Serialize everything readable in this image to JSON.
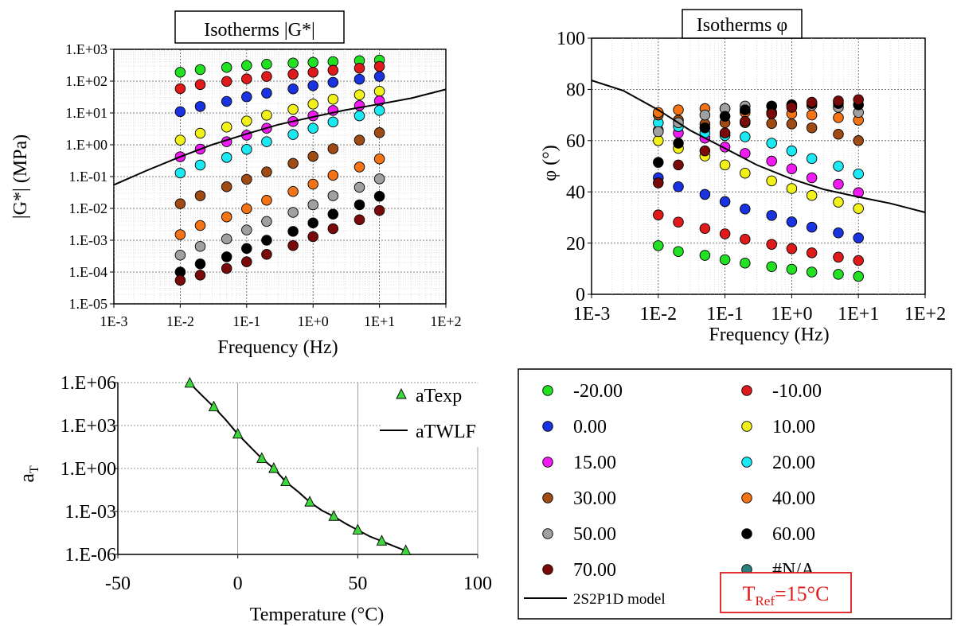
{
  "chart_data": [
    {
      "type": "scatter",
      "title": "Isotherms |G*|",
      "xlabel": "Frequency (Hz)",
      "ylabel": "|G*| (MPa)",
      "x_scale": "log",
      "y_scale": "log",
      "xlim": [
        0.001,
        100
      ],
      "ylim": [
        1e-05,
        1000
      ],
      "x_ticks": [
        0.001,
        0.01,
        0.1,
        1,
        10,
        100
      ],
      "x_tick_labels": [
        "1E-3",
        "1E-2",
        "1E-1",
        "1E+0",
        "1E+1",
        "1E+2"
      ],
      "y_ticks": [
        1e-05,
        0.0001,
        0.001,
        0.01,
        0.1,
        1,
        10,
        100,
        1000
      ],
      "y_tick_labels": [
        "1.E-05",
        "1.E-04",
        "1.E-03",
        "1.E-02",
        "1.E-01",
        "1.E+00",
        "1.E+01",
        "1.E+02",
        "1.E+03"
      ],
      "grid": true,
      "frequencies": [
        0.01,
        0.02,
        0.05,
        0.1,
        0.2,
        0.5,
        1,
        2,
        5,
        10
      ],
      "series": [
        {
          "name": "-20.00",
          "color": "#22e022",
          "values": [
            190,
            230,
            270,
            310,
            340,
            370,
            390,
            410,
            440,
            460
          ]
        },
        {
          "name": "-10.00",
          "color": "#e01a1a",
          "values": [
            58,
            78,
            98,
            118,
            140,
            165,
            190,
            220,
            255,
            290
          ]
        },
        {
          "name": "0.00",
          "color": "#1a33e0",
          "values": [
            11,
            16,
            23,
            32,
            42,
            57,
            72,
            92,
            115,
            140
          ]
        },
        {
          "name": "10.00",
          "color": "#f2f21a",
          "values": [
            1.4,
            2.3,
            3.6,
            5.6,
            8.5,
            13,
            19,
            27,
            37,
            48
          ]
        },
        {
          "name": "15.00",
          "color": "#f21af2",
          "values": [
            0.42,
            0.73,
            1.25,
            2.0,
            3.3,
            5.4,
            8.1,
            12,
            17,
            24
          ]
        },
        {
          "name": "20.00",
          "color": "#1ae8f2",
          "values": [
            0.13,
            0.23,
            0.4,
            0.72,
            1.25,
            2.1,
            3.3,
            5.2,
            8.1,
            12
          ]
        },
        {
          "name": "30.00",
          "color": "#a04a14",
          "values": [
            0.014,
            0.025,
            0.048,
            0.082,
            0.14,
            0.26,
            0.43,
            0.75,
            1.4,
            2.4
          ]
        },
        {
          "name": "40.00",
          "color": "#f47314",
          "values": [
            0.0015,
            0.0029,
            0.0054,
            0.0098,
            0.018,
            0.034,
            0.058,
            0.11,
            0.2,
            0.36
          ]
        },
        {
          "name": "50.00",
          "color": "#a0a0a0",
          "values": [
            0.00034,
            0.00064,
            0.0011,
            0.0021,
            0.0039,
            0.0075,
            0.013,
            0.025,
            0.046,
            0.085
          ]
        },
        {
          "name": "60.00",
          "color": "#000000",
          "values": [
            0.0001,
            0.00018,
            0.0003,
            0.00055,
            0.001,
            0.0019,
            0.0035,
            0.0066,
            0.013,
            0.024
          ]
        },
        {
          "name": "70.00",
          "color": "#7a0a0a",
          "values": [
            5.5e-05,
            8e-05,
            0.00013,
            0.00021,
            0.00036,
            0.00068,
            0.0013,
            0.0023,
            0.0044,
            0.0086
          ]
        }
      ],
      "model_curve": {
        "name": "2S2P1D model",
        "x": [
          0.001,
          0.003,
          0.01,
          0.03,
          0.1,
          0.3,
          1,
          3,
          10,
          30,
          100
        ],
        "values": [
          0.055,
          0.15,
          0.42,
          1.0,
          2.2,
          4.3,
          7.5,
          12.2,
          19,
          29,
          55
        ]
      }
    },
    {
      "type": "scatter",
      "title": "Isotherms φ",
      "xlabel": "Frequency (Hz)",
      "ylabel": "φ (°)",
      "x_scale": "log",
      "xlim": [
        0.001,
        100
      ],
      "ylim": [
        0,
        100
      ],
      "x_ticks": [
        0.001,
        0.01,
        0.1,
        1,
        10,
        100
      ],
      "x_tick_labels": [
        "1E-3",
        "1E-2",
        "1E-1",
        "1E+0",
        "1E+1",
        "1E+2"
      ],
      "y_ticks": [
        0,
        20,
        40,
        60,
        80,
        100
      ],
      "y_tick_labels": [
        "0",
        "20",
        "40",
        "60",
        "80",
        "100"
      ],
      "grid": true,
      "frequencies": [
        0.01,
        0.02,
        0.05,
        0.1,
        0.2,
        0.5,
        1,
        2,
        5,
        10
      ],
      "series": [
        {
          "name": "-20.00",
          "color": "#22e022",
          "values": [
            19,
            16.7,
            15.2,
            13.5,
            12.2,
            10.8,
            9.8,
            8.7,
            7.8,
            7
          ]
        },
        {
          "name": "-10.00",
          "color": "#e01a1a",
          "values": [
            31,
            28.2,
            25.7,
            23.6,
            21.5,
            19.5,
            17.8,
            16.2,
            14.5,
            13.2
          ]
        },
        {
          "name": "0.00",
          "color": "#1a33e0",
          "values": [
            45.5,
            42,
            39,
            36.2,
            33.3,
            30.8,
            28.3,
            26.2,
            24,
            22
          ]
        },
        {
          "name": "10.00",
          "color": "#f2f21a",
          "values": [
            60,
            57,
            54,
            50.5,
            47.3,
            44.3,
            41.3,
            38.6,
            36,
            33.5
          ]
        },
        {
          "name": "15.00",
          "color": "#f21af2",
          "values": [
            64,
            63,
            61,
            57.5,
            55,
            52,
            49,
            45.5,
            43,
            39.7
          ]
        },
        {
          "name": "20.00",
          "color": "#1ae8f2",
          "values": [
            67,
            65.5,
            63,
            62,
            61.5,
            59,
            56,
            53,
            50,
            47
          ]
        },
        {
          "name": "30.00",
          "color": "#a04a14",
          "values": [
            70,
            68,
            66.5,
            67,
            67,
            66.7,
            66.5,
            65,
            62.5,
            60
          ]
        },
        {
          "name": "40.00",
          "color": "#f47314",
          "values": [
            71,
            72,
            72.5,
            72.5,
            71,
            71,
            70.5,
            70,
            69,
            68
          ]
        },
        {
          "name": "50.00",
          "color": "#a0a0a0",
          "values": [
            63.5,
            67,
            70,
            72.5,
            73.5,
            73.5,
            73.5,
            73.8,
            73,
            71
          ]
        },
        {
          "name": "60.00",
          "color": "#000000",
          "values": [
            51.5,
            59,
            65,
            69.5,
            72,
            73.5,
            74,
            74.5,
            74.5,
            74
          ]
        },
        {
          "name": "70.00",
          "color": "#7a0a0a",
          "values": [
            43.5,
            50.5,
            56,
            63,
            67.5,
            70.5,
            73,
            75,
            75.5,
            76
          ]
        }
      ],
      "model_curve": {
        "name": "2S2P1D model",
        "x": [
          0.001,
          0.003,
          0.01,
          0.03,
          0.1,
          0.3,
          1,
          3,
          10,
          30,
          100
        ],
        "values": [
          83.5,
          79.5,
          72,
          64,
          57,
          50.5,
          45,
          41,
          38,
          35.5,
          32
        ]
      }
    },
    {
      "type": "scatter",
      "xlabel": "Temperature (°C)",
      "ylabel": "a",
      "ylabel_sub": "T",
      "y_scale": "log",
      "xlim": [
        -50,
        100
      ],
      "ylim": [
        1e-06,
        1000000
      ],
      "x_ticks": [
        -50,
        0,
        50,
        100
      ],
      "x_tick_labels": [
        "-50",
        "0",
        "50",
        "100"
      ],
      "y_ticks": [
        1e-06,
        0.001,
        1,
        1000,
        1000000
      ],
      "y_tick_labels": [
        "1.E-06",
        "1.E-03",
        "1.E+00",
        "1.E+03",
        "1.E+06"
      ],
      "grid": true,
      "legend": [
        "aTexp",
        "aTWLF"
      ],
      "legend_position": "top-right",
      "series": [
        {
          "name": "aTexp",
          "color": "#3dd63d",
          "x": [
            -20,
            -10,
            0,
            10,
            15,
            20,
            30,
            40,
            50,
            60,
            70
          ],
          "values": [
            900000,
            20000,
            250,
            5,
            1,
            0.12,
            0.0045,
            0.00045,
            5e-05,
            8.5e-06,
            1.8e-06
          ]
        },
        {
          "name": "aTWLF",
          "color": "#000000",
          "x": [
            -20,
            -15,
            -10,
            -5,
            0,
            5,
            10,
            15,
            20,
            25,
            30,
            35,
            40,
            45,
            50,
            55,
            60,
            65,
            70
          ],
          "values": [
            900000,
            130000,
            20000,
            2500,
            250,
            35,
            5,
            1,
            0.12,
            0.025,
            0.0045,
            0.0012,
            0.00045,
            0.00014,
            5e-05,
            1.8e-05,
            8.5e-06,
            3.8e-06,
            1.8e-06
          ]
        }
      ]
    }
  ],
  "legend": {
    "items": [
      {
        "label": "-20.00",
        "color": "#22e022"
      },
      {
        "label": "-10.00",
        "color": "#e01a1a"
      },
      {
        "label": "0.00",
        "color": "#1a33e0"
      },
      {
        "label": "10.00",
        "color": "#f2f21a"
      },
      {
        "label": "15.00",
        "color": "#f21af2"
      },
      {
        "label": "20.00",
        "color": "#1ae8f2"
      },
      {
        "label": "30.00",
        "color": "#a04a14"
      },
      {
        "label": "40.00",
        "color": "#f47314"
      },
      {
        "label": "50.00",
        "color": "#a0a0a0"
      },
      {
        "label": "60.00",
        "color": "#000000"
      },
      {
        "label": "70.00",
        "color": "#7a0a0a"
      },
      {
        "label": "#N/A",
        "color": "#2a7f7f"
      }
    ],
    "model_label": "2S2P1D model",
    "tref_prefix": "T",
    "tref_sub": "Ref",
    "tref_value": "=15°C",
    "tref_color": "#e01a1a"
  }
}
